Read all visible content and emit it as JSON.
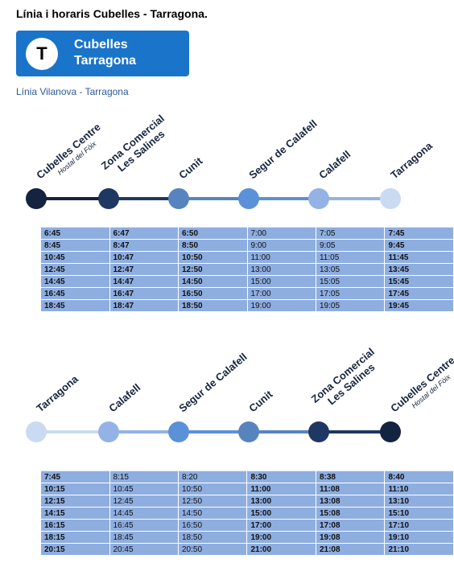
{
  "header": {
    "title": "Línia i horaris Cubelles - Tarragona.",
    "badge": {
      "letter": "T",
      "lines": [
        "Cubelles",
        "Tarragona"
      ]
    },
    "subtitle": "Línia Vilanova - Tarragona"
  },
  "sections": [
    {
      "stops": [
        {
          "name": [
            "Cubelles Centre"
          ],
          "note": "Hostal del Fòix"
        },
        {
          "name": [
            "Zona Comercial",
            "Les Salines"
          ]
        },
        {
          "name": [
            "Cunit"
          ]
        },
        {
          "name": [
            "Segur de Calafell"
          ]
        },
        {
          "name": [
            "Calafell"
          ]
        },
        {
          "name": [
            "Tarragona"
          ]
        }
      ],
      "bold_columns": [
        0,
        1,
        2,
        5
      ],
      "rows": [
        [
          "6:45",
          "6:47",
          "6:50",
          "7:00",
          "7:05",
          "7:45"
        ],
        [
          "8:45",
          "8:47",
          "8:50",
          "9:00",
          "9:05",
          "9:45"
        ],
        [
          "10:45",
          "10:47",
          "10:50",
          "11:00",
          "11:05",
          "11:45"
        ],
        [
          "12:45",
          "12:47",
          "12:50",
          "13:00",
          "13:05",
          "13:45"
        ],
        [
          "14:45",
          "14:47",
          "14:50",
          "15:00",
          "15:05",
          "15:45"
        ],
        [
          "16:45",
          "16:47",
          "16:50",
          "17:00",
          "17:05",
          "17:45"
        ],
        [
          "18:45",
          "18:47",
          "18:50",
          "19:00",
          "19:05",
          "19:45"
        ]
      ]
    },
    {
      "stops": [
        {
          "name": [
            "Tarragona"
          ]
        },
        {
          "name": [
            "Calafell"
          ]
        },
        {
          "name": [
            "Segur de Calafell"
          ]
        },
        {
          "name": [
            "Cunit"
          ]
        },
        {
          "name": [
            "Zona Comercial",
            "Les Salines"
          ]
        },
        {
          "name": [
            "Cubelles Centre"
          ],
          "note": "Hostal del Fòix"
        }
      ],
      "bold_columns": [
        0,
        3,
        4,
        5
      ],
      "rows": [
        [
          "7:45",
          "8:15",
          "8:20",
          "8:30",
          "8:38",
          "8:40"
        ],
        [
          "10:15",
          "10:45",
          "10:50",
          "11:00",
          "11:08",
          "11:10"
        ],
        [
          "12:15",
          "12:45",
          "12:50",
          "13:00",
          "13:08",
          "13:10"
        ],
        [
          "14:15",
          "14:45",
          "14:50",
          "15:00",
          "15:08",
          "15:10"
        ],
        [
          "16:15",
          "16:45",
          "16:50",
          "17:00",
          "17:08",
          "17:10"
        ],
        [
          "18:15",
          "18:45",
          "18:50",
          "19:00",
          "19:08",
          "19:10"
        ],
        [
          "20:15",
          "20:45",
          "20:50",
          "21:00",
          "21:08",
          "21:10"
        ]
      ]
    }
  ]
}
